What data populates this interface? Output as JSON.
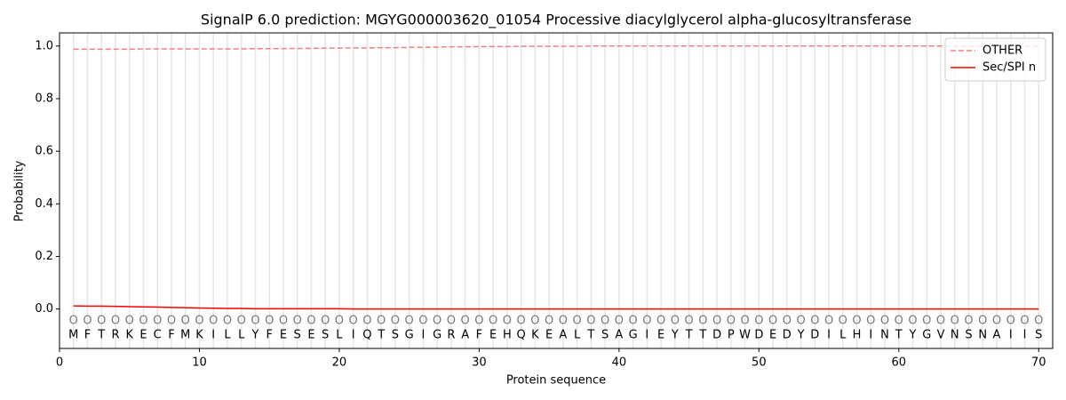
{
  "chart_data": {
    "type": "line",
    "title": "SignalP 6.0 prediction: MGYG000003620_01054 Processive diacylglycerol alpha-glucosyltransferase",
    "x_label": "Protein sequence",
    "y_label": "Probability",
    "x": [
      1,
      2,
      3,
      4,
      5,
      6,
      7,
      8,
      9,
      10,
      11,
      12,
      13,
      14,
      15,
      16,
      17,
      18,
      19,
      20,
      21,
      22,
      23,
      24,
      25,
      26,
      27,
      28,
      29,
      30,
      31,
      32,
      33,
      34,
      35,
      36,
      37,
      38,
      39,
      40,
      41,
      42,
      43,
      44,
      45,
      46,
      47,
      48,
      49,
      50,
      51,
      52,
      53,
      54,
      55,
      56,
      57,
      58,
      59,
      60,
      61,
      62,
      63,
      64,
      65,
      66,
      67,
      68,
      69,
      70
    ],
    "sequence": [
      "M",
      "F",
      "T",
      "R",
      "K",
      "E",
      "C",
      "F",
      "M",
      "K",
      "I",
      "L",
      "L",
      "Y",
      "F",
      "E",
      "S",
      "E",
      "S",
      "L",
      "I",
      "Q",
      "T",
      "S",
      "G",
      "I",
      "G",
      "R",
      "A",
      "F",
      "E",
      "H",
      "Q",
      "K",
      "E",
      "A",
      "L",
      "T",
      "S",
      "A",
      "G",
      "I",
      "E",
      "Y",
      "T",
      "T",
      "D",
      "P",
      "W",
      "D",
      "E",
      "D",
      "Y",
      "D",
      "I",
      "L",
      "H",
      "I",
      "N",
      "T",
      "Y",
      "G",
      "V",
      "N",
      "S",
      "N",
      "A",
      "I",
      "I",
      "S"
    ],
    "states": [
      "O",
      "O",
      "O",
      "O",
      "O",
      "O",
      "O",
      "O",
      "O",
      "O",
      "O",
      "O",
      "O",
      "O",
      "O",
      "O",
      "O",
      "O",
      "O",
      "O",
      "O",
      "O",
      "O",
      "O",
      "O",
      "O",
      "O",
      "O",
      "O",
      "O",
      "O",
      "O",
      "O",
      "O",
      "O",
      "O",
      "O",
      "O",
      "O",
      "O",
      "O",
      "O",
      "O",
      "O",
      "O",
      "O",
      "O",
      "O",
      "O",
      "O",
      "O",
      "O",
      "O",
      "O",
      "O",
      "O",
      "O",
      "O",
      "O",
      "O",
      "O",
      "O",
      "O",
      "O",
      "O",
      "O",
      "O",
      "O",
      "O",
      "O"
    ],
    "series": [
      {
        "name": "OTHER",
        "color": "#f08080",
        "linestyle": "dashed",
        "values": [
          0.988,
          0.988,
          0.988,
          0.988,
          0.988,
          0.989,
          0.989,
          0.989,
          0.989,
          0.989,
          0.989,
          0.989,
          0.989,
          0.99,
          0.99,
          0.99,
          0.991,
          0.991,
          0.992,
          0.992,
          0.993,
          0.993,
          0.994,
          0.994,
          0.995,
          0.995,
          0.996,
          0.997,
          0.997,
          0.998,
          0.998,
          0.998,
          0.999,
          0.999,
          0.999,
          0.999,
          0.999,
          1.0,
          1.0,
          1.0,
          1.0,
          1.0,
          1.0,
          1.0,
          1.0,
          1.0,
          1.0,
          1.0,
          1.0,
          1.0,
          1.0,
          1.0,
          1.0,
          1.0,
          1.0,
          1.0,
          1.0,
          1.0,
          1.0,
          1.0,
          1.0,
          1.0,
          1.0,
          1.0,
          1.0,
          1.0,
          1.0,
          1.0,
          1.0,
          1.0
        ]
      },
      {
        "name": "Sec/SPI n",
        "color": "#ff0000",
        "linestyle": "solid",
        "values": [
          0.012,
          0.011,
          0.011,
          0.01,
          0.009,
          0.008,
          0.007,
          0.006,
          0.005,
          0.004,
          0.003,
          0.002,
          0.002,
          0.001,
          0.001,
          0.001,
          0.001,
          0.001,
          0.001,
          0.001,
          0,
          0,
          0,
          0,
          0,
          0,
          0,
          0,
          0,
          0,
          0,
          0,
          0,
          0,
          0,
          0,
          0,
          0,
          0,
          0,
          0,
          0,
          0,
          0,
          0,
          0,
          0,
          0,
          0,
          0,
          0,
          0,
          0,
          0,
          0,
          0,
          0,
          0,
          0,
          0,
          0,
          0,
          0,
          0,
          0,
          0,
          0,
          0,
          0,
          0
        ]
      }
    ],
    "xlim": [
      0,
      71
    ],
    "xticks": [
      0,
      10,
      20,
      30,
      40,
      50,
      60,
      70
    ],
    "ylim": [
      -0.15,
      1.05
    ],
    "yticks": [
      {
        "value": 0,
        "label": "0.0"
      },
      0.2,
      0.4,
      0.6,
      0.8,
      {
        "value": 1,
        "label": "1.0"
      }
    ],
    "legend": "upper right"
  }
}
